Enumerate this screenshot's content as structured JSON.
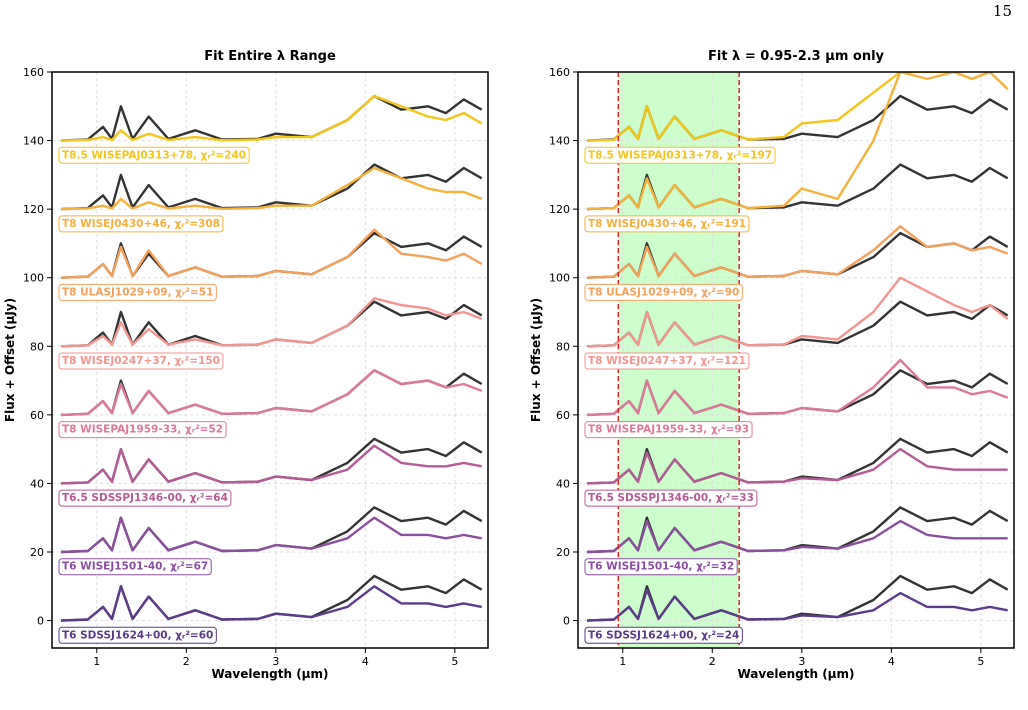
{
  "page_number": "15",
  "chart_data": [
    {
      "type": "line",
      "title": "Fit Entire λ Range",
      "xlabel": "Wavelength (μm)",
      "ylabel": "Flux + Offset (μJy)",
      "xlim": [
        0.5,
        5.37
      ],
      "ylim": [
        -8,
        160
      ],
      "xticks": [
        1,
        2,
        3,
        4,
        5
      ],
      "yticks": [
        0,
        20,
        40,
        60,
        80,
        100,
        120,
        140,
        160
      ],
      "grid": true,
      "x": [
        0.6,
        0.9,
        1.07,
        1.17,
        1.27,
        1.4,
        1.58,
        1.8,
        2.1,
        2.4,
        2.8,
        3.0,
        3.4,
        3.8,
        4.1,
        4.4,
        4.7,
        4.9,
        5.1,
        5.3
      ],
      "series": [
        {
          "color": "#333333",
          "values": [
            140,
            140.3,
            144,
            140.5,
            150,
            140.5,
            147,
            140.5,
            143,
            140.3,
            140.5,
            142,
            141,
            146,
            153,
            149,
            150,
            148,
            152,
            149
          ]
        },
        {
          "name": "T8.5 WISEPAJ0313+78, χᵣ²=240",
          "color": "#f5c518",
          "values": [
            140,
            140.2,
            141,
            140.2,
            143,
            140.2,
            142,
            140.2,
            141,
            140.1,
            140.3,
            141,
            141,
            146,
            153,
            150,
            147,
            146,
            148,
            145
          ]
        },
        {
          "color": "#333333",
          "values": [
            120,
            120.3,
            124,
            120.5,
            130,
            120.5,
            127,
            120.5,
            123,
            120.3,
            120.5,
            122,
            121,
            126,
            133,
            129,
            130,
            128,
            132,
            129
          ]
        },
        {
          "name": "T8 WISEJ0430+46, χᵣ²=308",
          "color": "#f6b13a",
          "values": [
            120,
            120.2,
            121,
            120.2,
            123,
            120.2,
            122,
            120.2,
            121,
            120.1,
            120.3,
            121,
            121,
            127,
            132,
            129,
            126,
            125,
            125,
            123
          ]
        },
        {
          "color": "#333333",
          "values": [
            100,
            100.3,
            104,
            100.5,
            110,
            100.5,
            107,
            100.5,
            103,
            100.3,
            100.5,
            102,
            101,
            106,
            113,
            109,
            110,
            108,
            112,
            109
          ]
        },
        {
          "name": "T8 ULASJ1029+09, χᵣ²=51",
          "color": "#f5a15a",
          "values": [
            100,
            100.3,
            104,
            100.5,
            109,
            100.5,
            108,
            100.5,
            103,
            100.3,
            100.5,
            102,
            101,
            106,
            114,
            107,
            106,
            105,
            107,
            104
          ]
        },
        {
          "color": "#333333",
          "values": [
            80,
            80.3,
            84,
            80.5,
            90,
            80.5,
            87,
            80.5,
            83,
            80.3,
            80.5,
            82,
            81,
            86,
            93,
            89,
            90,
            88,
            92,
            89
          ]
        },
        {
          "name": "T8 WISEJ0247+37, χᵣ²=150",
          "color": "#f4958f",
          "values": [
            80,
            80.3,
            83,
            80.5,
            87,
            80.5,
            85,
            80.5,
            82,
            80.3,
            80.5,
            82,
            81,
            86,
            94,
            92,
            91,
            89,
            90,
            88
          ]
        },
        {
          "color": "#333333",
          "values": [
            60,
            60.3,
            64,
            60.5,
            70,
            60.5,
            67,
            60.5,
            63,
            60.3,
            60.5,
            62,
            61,
            66,
            73,
            69,
            70,
            68,
            72,
            69
          ]
        },
        {
          "name": "T8 WISEPAJ1959-33, χᵣ²=52",
          "color": "#e0789a",
          "values": [
            60,
            60.3,
            64,
            60.5,
            69,
            60.5,
            67,
            60.5,
            63,
            60.3,
            60.5,
            62,
            61,
            66,
            73,
            69,
            70,
            68,
            69,
            67
          ]
        },
        {
          "color": "#333333",
          "values": [
            40,
            40.3,
            44,
            40.5,
            50,
            40.5,
            47,
            40.5,
            43,
            40.3,
            40.5,
            42,
            41,
            46,
            53,
            49,
            50,
            48,
            52,
            49
          ]
        },
        {
          "name": "T6.5 SDSSPJ1346-00, χᵣ²=64",
          "color": "#b55b96",
          "values": [
            40,
            40.3,
            44,
            40.5,
            50,
            40.5,
            47,
            40.5,
            43,
            40.3,
            40.5,
            42,
            41,
            44,
            51,
            46,
            45,
            45,
            46,
            45
          ]
        },
        {
          "color": "#333333",
          "values": [
            20,
            20.3,
            24,
            20.5,
            30,
            20.5,
            27,
            20.5,
            23,
            20.3,
            20.5,
            22,
            21,
            26,
            33,
            29,
            30,
            28,
            32,
            29
          ]
        },
        {
          "name": "T6 WISEJ1501-40, χᵣ²=67",
          "color": "#8a4f9e",
          "values": [
            20,
            20.3,
            24,
            20.5,
            30,
            20.5,
            27,
            20.5,
            23,
            20.3,
            20.5,
            22,
            21,
            24,
            30,
            25,
            25,
            24,
            25,
            24
          ]
        },
        {
          "color": "#333333",
          "values": [
            0,
            0.3,
            4,
            0.5,
            10,
            0.5,
            7,
            0.5,
            3,
            0.3,
            0.5,
            2,
            1,
            6,
            13,
            9,
            10,
            8,
            12,
            9
          ]
        },
        {
          "name": "T6 SDSSJ1624+00, χᵣ²=60",
          "color": "#5b3b8c",
          "values": [
            0,
            0.3,
            4,
            0.5,
            10,
            0.5,
            7,
            0.5,
            3,
            0.3,
            0.5,
            2,
            1,
            4,
            10,
            5,
            5,
            4,
            5,
            4
          ]
        }
      ]
    },
    {
      "type": "line",
      "title": "Fit λ = 0.95-2.3 μm only",
      "xlabel": "Wavelength (μm)",
      "ylabel": "Flux + Offset (μJy)",
      "xlim": [
        0.5,
        5.37
      ],
      "ylim": [
        -8,
        160
      ],
      "xticks": [
        1,
        2,
        3,
        4,
        5
      ],
      "yticks": [
        0,
        20,
        40,
        60,
        80,
        100,
        120,
        140,
        160
      ],
      "grid": true,
      "span": [
        0.95,
        2.3
      ],
      "span_color": "#ccffcc",
      "span_edge_color": "#d62728",
      "x": [
        0.6,
        0.9,
        1.07,
        1.17,
        1.27,
        1.4,
        1.58,
        1.8,
        2.1,
        2.4,
        2.8,
        3.0,
        3.4,
        3.8,
        4.1,
        4.4,
        4.7,
        4.9,
        5.1,
        5.3
      ],
      "series": [
        {
          "color": "#333333",
          "values": [
            140,
            140.3,
            144,
            140.5,
            150,
            140.5,
            147,
            140.5,
            143,
            140.3,
            140.5,
            142,
            141,
            146,
            153,
            149,
            150,
            148,
            152,
            149
          ]
        },
        {
          "name": "T8.5 WISEPAJ0313+78, χᵣ²=197",
          "color": "#f5c518",
          "values": [
            140,
            140.2,
            144,
            140.5,
            150,
            140.5,
            147,
            140.5,
            143,
            140.3,
            141,
            145,
            146,
            154,
            160,
            160,
            160,
            158,
            160,
            155
          ]
        },
        {
          "color": "#333333",
          "values": [
            120,
            120.3,
            124,
            120.5,
            130,
            120.5,
            127,
            120.5,
            123,
            120.3,
            120.5,
            122,
            121,
            126,
            133,
            129,
            130,
            128,
            132,
            129
          ]
        },
        {
          "name": "T8 WISEJ0430+46, χᵣ²=191",
          "color": "#f6b13a",
          "values": [
            120,
            120.3,
            124,
            120.5,
            129,
            120.5,
            127,
            120.5,
            123,
            120.3,
            121,
            126,
            123,
            140,
            160,
            158,
            160,
            158,
            160,
            155
          ]
        },
        {
          "color": "#333333",
          "values": [
            100,
            100.3,
            104,
            100.5,
            110,
            100.5,
            107,
            100.5,
            103,
            100.3,
            100.5,
            102,
            101,
            106,
            113,
            109,
            110,
            108,
            112,
            109
          ]
        },
        {
          "name": "T8 ULASJ1029+09, χᵣ²=90",
          "color": "#f5a15a",
          "values": [
            100,
            100.3,
            104,
            100.5,
            109,
            100.5,
            107,
            100.5,
            103,
            100.3,
            100.5,
            102,
            101,
            108,
            115,
            109,
            110,
            108,
            109,
            107
          ]
        },
        {
          "color": "#333333",
          "values": [
            80,
            80.3,
            84,
            80.5,
            90,
            80.5,
            87,
            80.5,
            83,
            80.3,
            80.5,
            82,
            81,
            86,
            93,
            89,
            90,
            88,
            92,
            89
          ]
        },
        {
          "name": "T8 WISEJ0247+37, χᵣ²=121",
          "color": "#f4958f",
          "values": [
            80,
            80.3,
            84,
            80.5,
            90,
            80.5,
            87,
            80.5,
            83,
            80.3,
            80.5,
            83,
            82,
            90,
            100,
            96,
            92,
            90,
            92,
            88
          ]
        },
        {
          "color": "#333333",
          "values": [
            60,
            60.3,
            64,
            60.5,
            70,
            60.5,
            67,
            60.5,
            63,
            60.3,
            60.5,
            62,
            61,
            66,
            73,
            69,
            70,
            68,
            72,
            69
          ]
        },
        {
          "name": "T8 WISEPAJ1959-33, χᵣ²=93",
          "color": "#e0789a",
          "values": [
            60,
            60.3,
            64,
            60.5,
            70,
            60.5,
            67,
            60.5,
            63,
            60.3,
            60.5,
            62,
            61,
            68,
            76,
            68,
            68,
            66,
            67,
            65
          ]
        },
        {
          "color": "#333333",
          "values": [
            40,
            40.3,
            44,
            40.5,
            50,
            40.5,
            47,
            40.5,
            43,
            40.3,
            40.5,
            42,
            41,
            46,
            53,
            49,
            50,
            48,
            52,
            49
          ]
        },
        {
          "name": "T6.5 SDSSPJ1346-00, χᵣ²=33",
          "color": "#b55b96",
          "values": [
            40,
            40.3,
            44,
            40.5,
            49,
            40.5,
            47,
            40.5,
            43,
            40.3,
            40.5,
            41.5,
            41,
            44,
            50,
            45,
            44,
            44,
            44,
            44
          ]
        },
        {
          "color": "#333333",
          "values": [
            20,
            20.3,
            24,
            20.5,
            30,
            20.5,
            27,
            20.5,
            23,
            20.3,
            20.5,
            22,
            21,
            26,
            33,
            29,
            30,
            28,
            32,
            29
          ]
        },
        {
          "name": "T6 WISEJ1501-40, χᵣ²=32",
          "color": "#8a4f9e",
          "values": [
            20,
            20.3,
            24,
            20.5,
            29,
            20.5,
            27,
            20.5,
            23,
            20.3,
            20.5,
            21.5,
            21,
            24,
            29,
            25,
            24,
            24,
            24,
            24
          ]
        },
        {
          "color": "#333333",
          "values": [
            0,
            0.3,
            4,
            0.5,
            10,
            0.5,
            7,
            0.5,
            3,
            0.3,
            0.5,
            2,
            1,
            6,
            13,
            9,
            10,
            8,
            12,
            9
          ]
        },
        {
          "name": "T6 SDSSJ1624+00, χᵣ²=24",
          "color": "#5b3b8c",
          "values": [
            0,
            0.3,
            4,
            0.5,
            9,
            0.5,
            7,
            0.5,
            3,
            0.3,
            0.5,
            1.5,
            1,
            3,
            8,
            4,
            4,
            3,
            4,
            3
          ]
        }
      ]
    }
  ]
}
